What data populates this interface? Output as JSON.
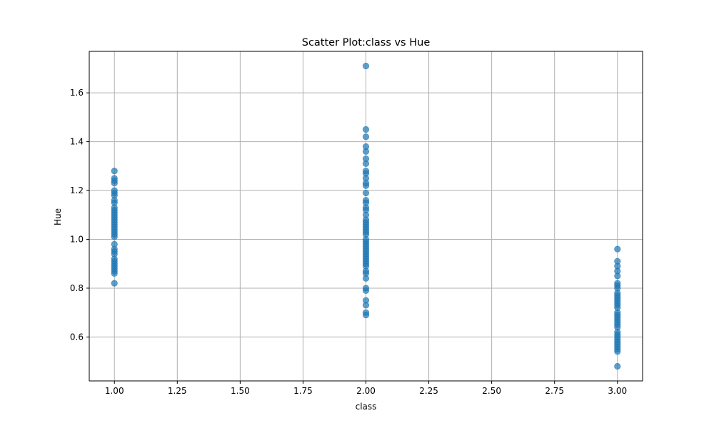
{
  "chart_data": {
    "type": "scatter",
    "title": "Scatter Plot:class vs Hue",
    "xlabel": "class",
    "ylabel": "Hue",
    "xlim": [
      0.9,
      3.1
    ],
    "ylim": [
      0.42,
      1.77
    ],
    "x_ticks": [
      "1.00",
      "1.25",
      "1.50",
      "1.75",
      "2.00",
      "2.25",
      "2.50",
      "2.75",
      "3.00"
    ],
    "y_ticks": [
      "0.6",
      "0.8",
      "1.0",
      "1.2",
      "1.4",
      "1.6"
    ],
    "grid": true,
    "marker_color": "#1f77b4",
    "marker_alpha": 0.7,
    "series": [
      {
        "points": [
          [
            1,
            0.82
          ],
          [
            1,
            0.86
          ],
          [
            1,
            0.87
          ],
          [
            1,
            0.88
          ],
          [
            1,
            0.89
          ],
          [
            1,
            0.9
          ],
          [
            1,
            0.91
          ],
          [
            1,
            0.92
          ],
          [
            1,
            0.94
          ],
          [
            1,
            0.95
          ],
          [
            1,
            0.96
          ],
          [
            1,
            0.98
          ],
          [
            1,
            1.01
          ],
          [
            1,
            1.02
          ],
          [
            1,
            1.03
          ],
          [
            1,
            1.04
          ],
          [
            1,
            1.05
          ],
          [
            1,
            1.06
          ],
          [
            1,
            1.07
          ],
          [
            1,
            1.08
          ],
          [
            1,
            1.09
          ],
          [
            1,
            1.1
          ],
          [
            1,
            1.11
          ],
          [
            1,
            1.12
          ],
          [
            1,
            1.13
          ],
          [
            1,
            1.15
          ],
          [
            1,
            1.16
          ],
          [
            1,
            1.18
          ],
          [
            1,
            1.19
          ],
          [
            1,
            1.2
          ],
          [
            1,
            1.23
          ],
          [
            1,
            1.24
          ],
          [
            1,
            1.25
          ],
          [
            1,
            1.28
          ],
          [
            2,
            0.69
          ],
          [
            2,
            0.7
          ],
          [
            2,
            0.73
          ],
          [
            2,
            0.75
          ],
          [
            2,
            0.79
          ],
          [
            2,
            0.8
          ],
          [
            2,
            0.84
          ],
          [
            2,
            0.86
          ],
          [
            2,
            0.87
          ],
          [
            2,
            0.89
          ],
          [
            2,
            0.9
          ],
          [
            2,
            0.91
          ],
          [
            2,
            0.92
          ],
          [
            2,
            0.93
          ],
          [
            2,
            0.94
          ],
          [
            2,
            0.95
          ],
          [
            2,
            0.96
          ],
          [
            2,
            0.97
          ],
          [
            2,
            0.98
          ],
          [
            2,
            0.99
          ],
          [
            2,
            1.0
          ],
          [
            2,
            1.02
          ],
          [
            2,
            1.03
          ],
          [
            2,
            1.04
          ],
          [
            2,
            1.05
          ],
          [
            2,
            1.06
          ],
          [
            2,
            1.07
          ],
          [
            2,
            1.08
          ],
          [
            2,
            1.1
          ],
          [
            2,
            1.12
          ],
          [
            2,
            1.13
          ],
          [
            2,
            1.15
          ],
          [
            2,
            1.16
          ],
          [
            2,
            1.19
          ],
          [
            2,
            1.22
          ],
          [
            2,
            1.23
          ],
          [
            2,
            1.25
          ],
          [
            2,
            1.27
          ],
          [
            2,
            1.28
          ],
          [
            2,
            1.31
          ],
          [
            2,
            1.33
          ],
          [
            2,
            1.36
          ],
          [
            2,
            1.38
          ],
          [
            2,
            1.42
          ],
          [
            2,
            1.45
          ],
          [
            2,
            1.71
          ],
          [
            3,
            0.48
          ],
          [
            3,
            0.54
          ],
          [
            3,
            0.55
          ],
          [
            3,
            0.56
          ],
          [
            3,
            0.57
          ],
          [
            3,
            0.58
          ],
          [
            3,
            0.59
          ],
          [
            3,
            0.6
          ],
          [
            3,
            0.61
          ],
          [
            3,
            0.62
          ],
          [
            3,
            0.64
          ],
          [
            3,
            0.65
          ],
          [
            3,
            0.66
          ],
          [
            3,
            0.67
          ],
          [
            3,
            0.68
          ],
          [
            3,
            0.69
          ],
          [
            3,
            0.7
          ],
          [
            3,
            0.72
          ],
          [
            3,
            0.73
          ],
          [
            3,
            0.74
          ],
          [
            3,
            0.75
          ],
          [
            3,
            0.76
          ],
          [
            3,
            0.77
          ],
          [
            3,
            0.78
          ],
          [
            3,
            0.8
          ],
          [
            3,
            0.81
          ],
          [
            3,
            0.82
          ],
          [
            3,
            0.85
          ],
          [
            3,
            0.87
          ],
          [
            3,
            0.89
          ],
          [
            3,
            0.91
          ],
          [
            3,
            0.96
          ]
        ]
      }
    ]
  }
}
